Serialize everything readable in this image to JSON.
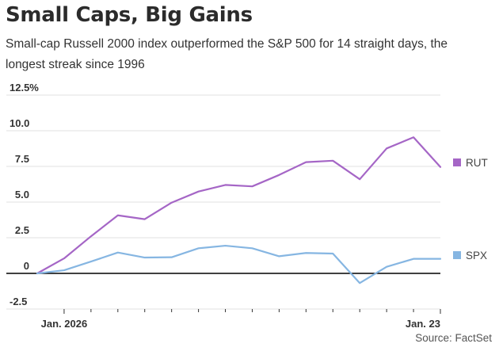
{
  "header": {
    "title": "Small Caps, Big Gains",
    "subtitle": "Small-cap Russell 2000 index outperformed the S&P 500 for 14 straight days, the longest streak since 1996"
  },
  "footer": {
    "source": "Source: FactSet"
  },
  "chart_data": {
    "type": "line",
    "title": "Small Caps, Big Gains",
    "subtitle": "Small-cap Russell 2000 index outperformed the S&P 500 for 14 straight days, the longest streak since 1996",
    "xlabel": "",
    "ylabel": "",
    "x": [
      0,
      1,
      2,
      3,
      4,
      5,
      6,
      7,
      8,
      9,
      10,
      11,
      12,
      13,
      14,
      15
    ],
    "x_tick_positions": [
      1,
      2,
      3,
      4,
      5,
      6,
      7,
      8,
      9,
      10,
      11,
      12,
      13,
      14,
      15
    ],
    "x_labels": [
      {
        "x": 1,
        "label": "Jan. 2026"
      },
      {
        "x": 15,
        "label": "Jan. 23"
      }
    ],
    "y_ticks": [
      -2.5,
      0,
      2.5,
      5.0,
      7.5,
      10.0,
      12.5
    ],
    "y_tick_labels": [
      "-2.5",
      "0",
      "2.5",
      "5.0",
      "7.5",
      "10.0",
      "12.5%"
    ],
    "ylim": [
      -2.5,
      12.5
    ],
    "xlim": [
      0,
      15
    ],
    "grid": true,
    "legend": "right, at series end",
    "series": [
      {
        "name": "RUT",
        "color": "#a566c6",
        "values": [
          0,
          1.05,
          2.6,
          4.07,
          3.8,
          4.96,
          5.74,
          6.2,
          6.1,
          6.9,
          7.8,
          7.9,
          6.6,
          8.76,
          9.54,
          7.46
        ]
      },
      {
        "name": "SPX",
        "color": "#86b6e2",
        "values": [
          0,
          0.22,
          0.83,
          1.46,
          1.11,
          1.13,
          1.76,
          1.94,
          1.76,
          1.2,
          1.43,
          1.39,
          -0.68,
          0.46,
          1.02,
          1.02
        ]
      }
    ],
    "source": "Source: FactSet"
  },
  "colors": {
    "gridline": "#e1e1e1",
    "zero_line": "#000000",
    "text": "#333333"
  }
}
